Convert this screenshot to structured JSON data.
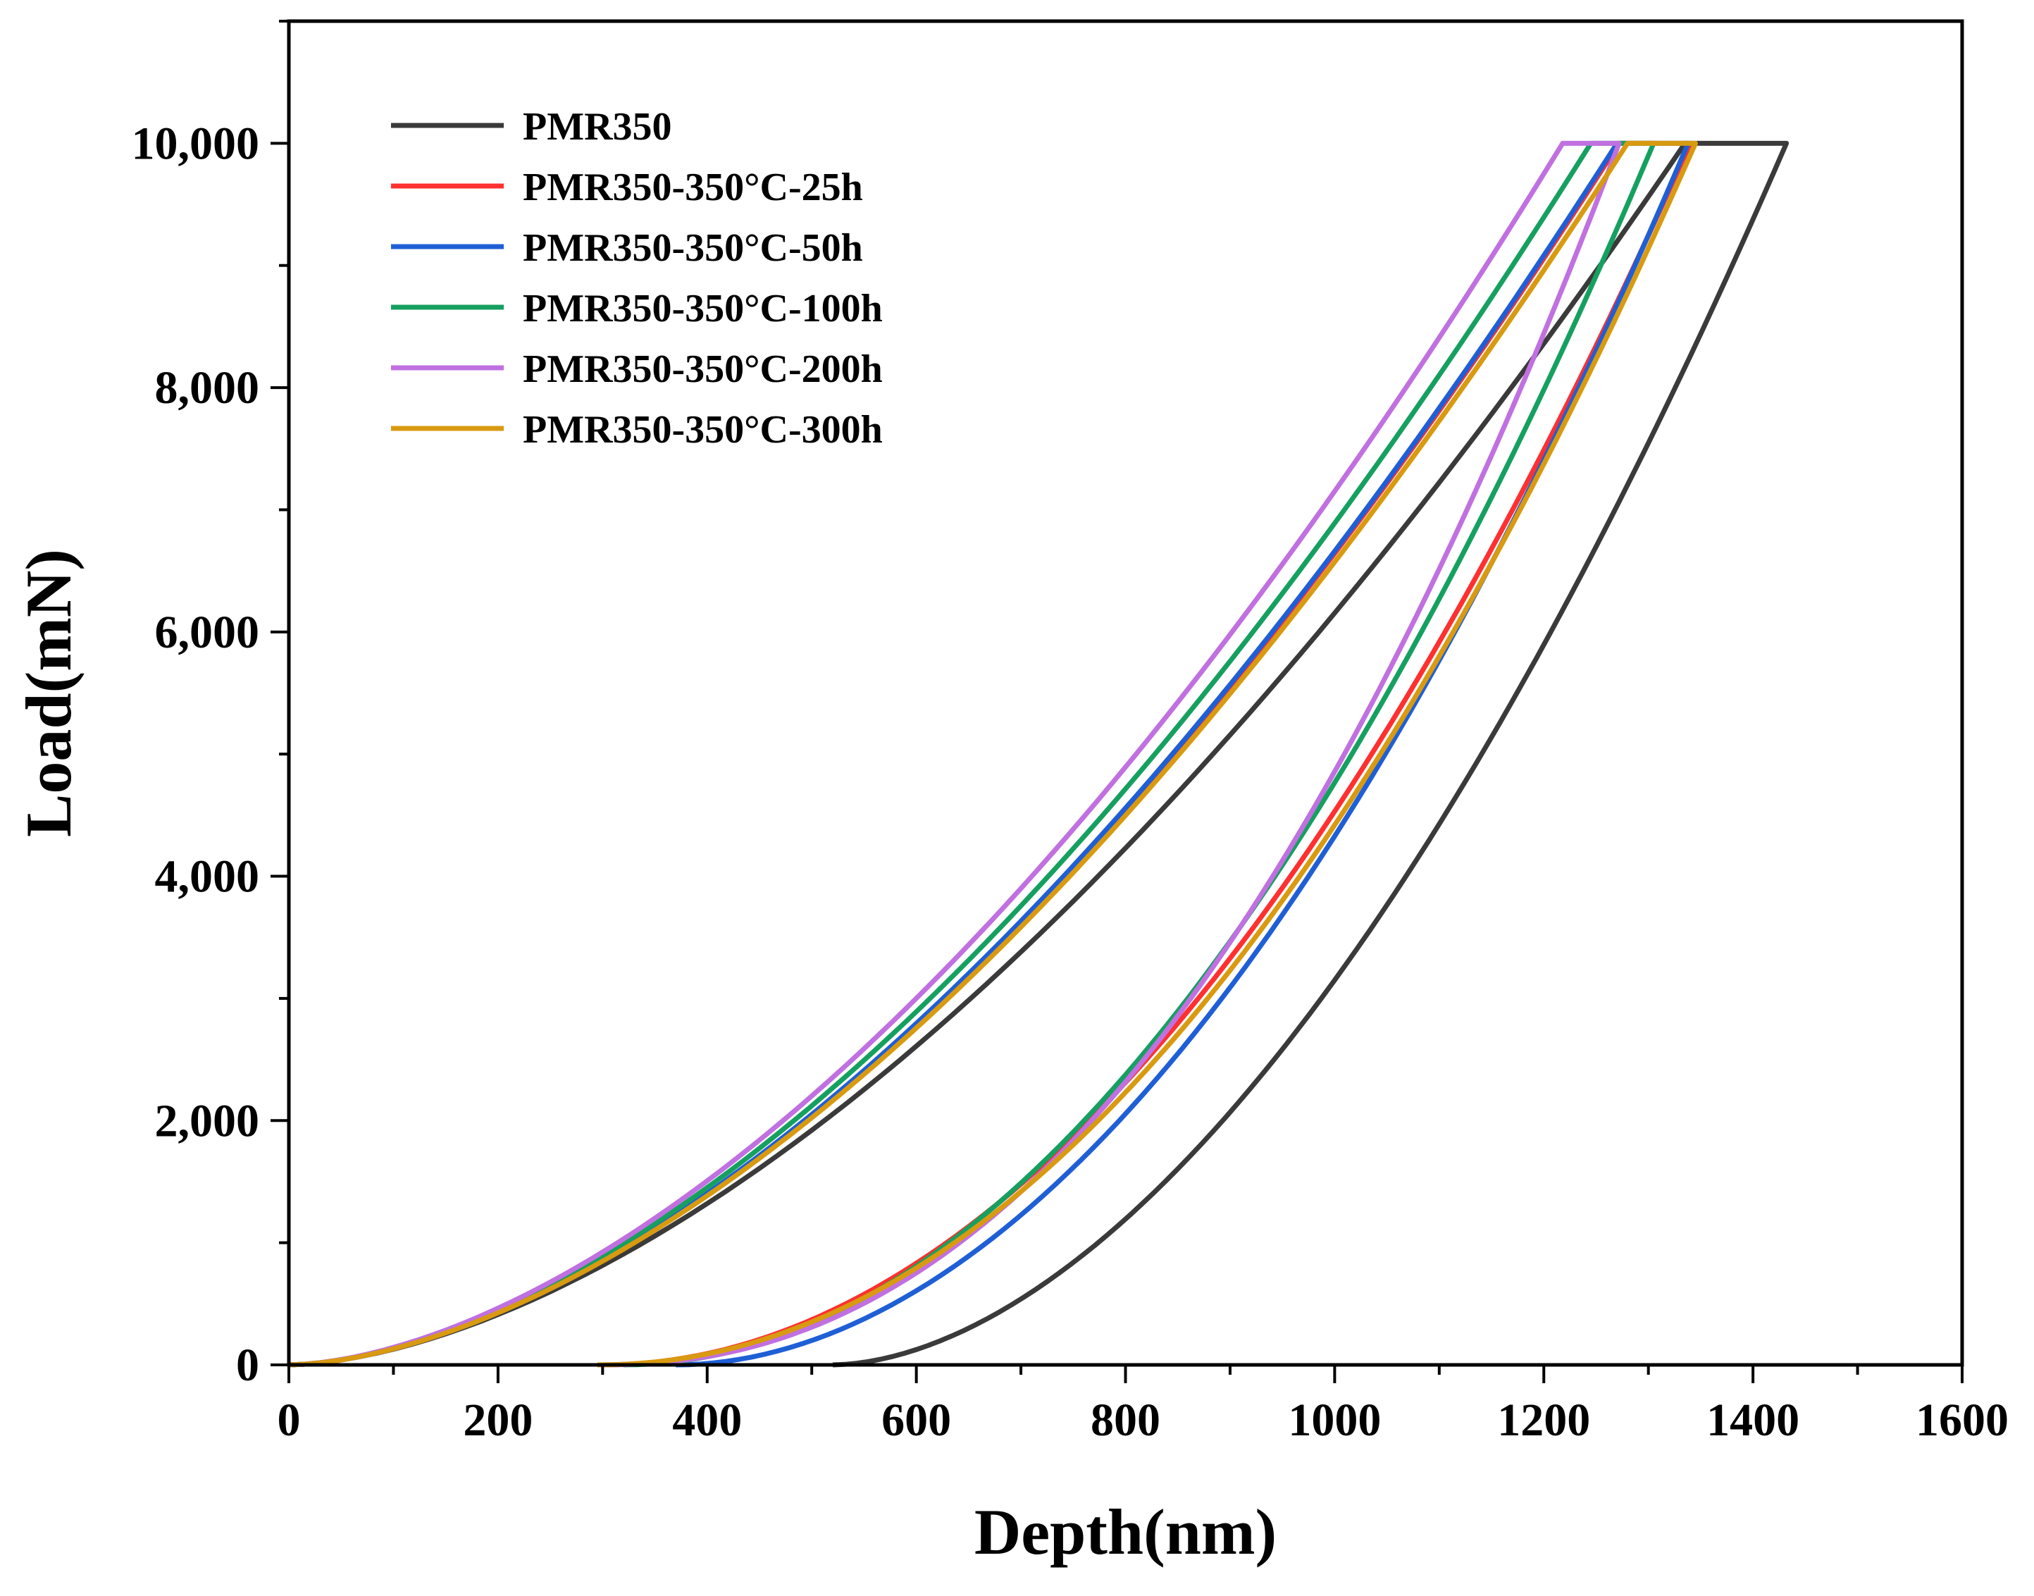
{
  "chart_data": {
    "type": "line",
    "title": "",
    "xlabel": "Depth(nm)",
    "ylabel": "Load(mN)",
    "xlim": [
      0,
      1600
    ],
    "ylim": [
      0,
      11000
    ],
    "xticks": [
      0,
      200,
      400,
      600,
      800,
      1000,
      1200,
      1400,
      1600
    ],
    "xtick_labels": [
      "0",
      "200",
      "400",
      "600",
      "800",
      "1000",
      "1200",
      "1400",
      "1600"
    ],
    "yticks": [
      0,
      2000,
      4000,
      6000,
      8000,
      10000
    ],
    "ytick_labels": [
      "0",
      "2,000",
      "4,000",
      "6,000",
      "8,000",
      "10,000"
    ],
    "grid": false,
    "legend_position": "top-left",
    "max_load": 10000,
    "series": [
      {
        "name": "PMR350",
        "color": "#3a3a3a",
        "h_load_end": 1335,
        "h_hold_end": 1432,
        "h_final": 520,
        "unload_exp": 1.8,
        "load_exp": 1.68
      },
      {
        "name": "PMR350-350°C-25h",
        "color": "#ff3030",
        "h_load_end": 1272,
        "h_hold_end": 1340,
        "h_final": 300,
        "unload_exp": 2.0,
        "load_exp": 1.7
      },
      {
        "name": "PMR350-350°C-50h",
        "color": "#1f5fd6",
        "h_load_end": 1270,
        "h_hold_end": 1338,
        "h_final": 370,
        "unload_exp": 1.95,
        "load_exp": 1.7
      },
      {
        "name": "PMR350-350°C-100h",
        "color": "#16a060",
        "h_load_end": 1245,
        "h_hold_end": 1305,
        "h_final": 320,
        "unload_exp": 2.0,
        "load_exp": 1.7
      },
      {
        "name": "PMR350-350°C-200h",
        "color": "#c070e0",
        "h_load_end": 1218,
        "h_hold_end": 1272,
        "h_final": 300,
        "unload_exp": 2.2,
        "load_exp": 1.7
      },
      {
        "name": "PMR350-350°C-300h",
        "color": "#d89a10",
        "h_load_end": 1280,
        "h_hold_end": 1345,
        "h_final": 295,
        "unload_exp": 2.05,
        "load_exp": 1.7
      }
    ]
  }
}
